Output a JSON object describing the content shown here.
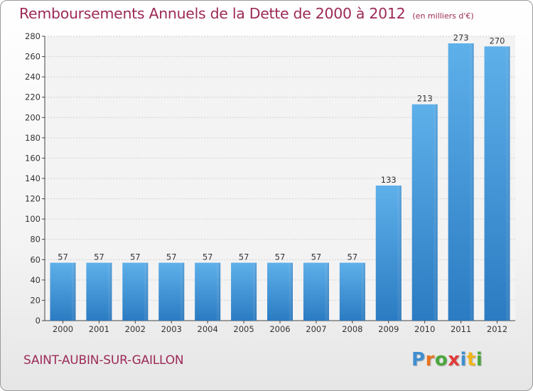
{
  "chart_data": {
    "type": "bar",
    "title": "Remboursements Annuels de la Dette de 2000 à 2012",
    "unit_note": "(en milliers d'€)",
    "categories": [
      "2000",
      "2001",
      "2002",
      "2003",
      "2004",
      "2005",
      "2006",
      "2007",
      "2008",
      "2009",
      "2010",
      "2011",
      "2012"
    ],
    "values": [
      57,
      57,
      57,
      57,
      57,
      57,
      57,
      57,
      57,
      133,
      213,
      273,
      270
    ],
    "ylim": [
      0,
      280
    ],
    "yticks": [
      0,
      20,
      40,
      60,
      80,
      100,
      120,
      140,
      160,
      180,
      200,
      220,
      240,
      260,
      280
    ],
    "grid": true,
    "bar_color": "#3d8fd6"
  },
  "footer": {
    "town": "SAINT-AUBIN-SUR-GAILLON",
    "logo_text": "Proxiti",
    "logo_colors": [
      "#3f8fd1",
      "#e8731e",
      "#4aa63c",
      "#e23a3a",
      "#3f8fd1",
      "#f0b419",
      "#4aa63c"
    ]
  }
}
